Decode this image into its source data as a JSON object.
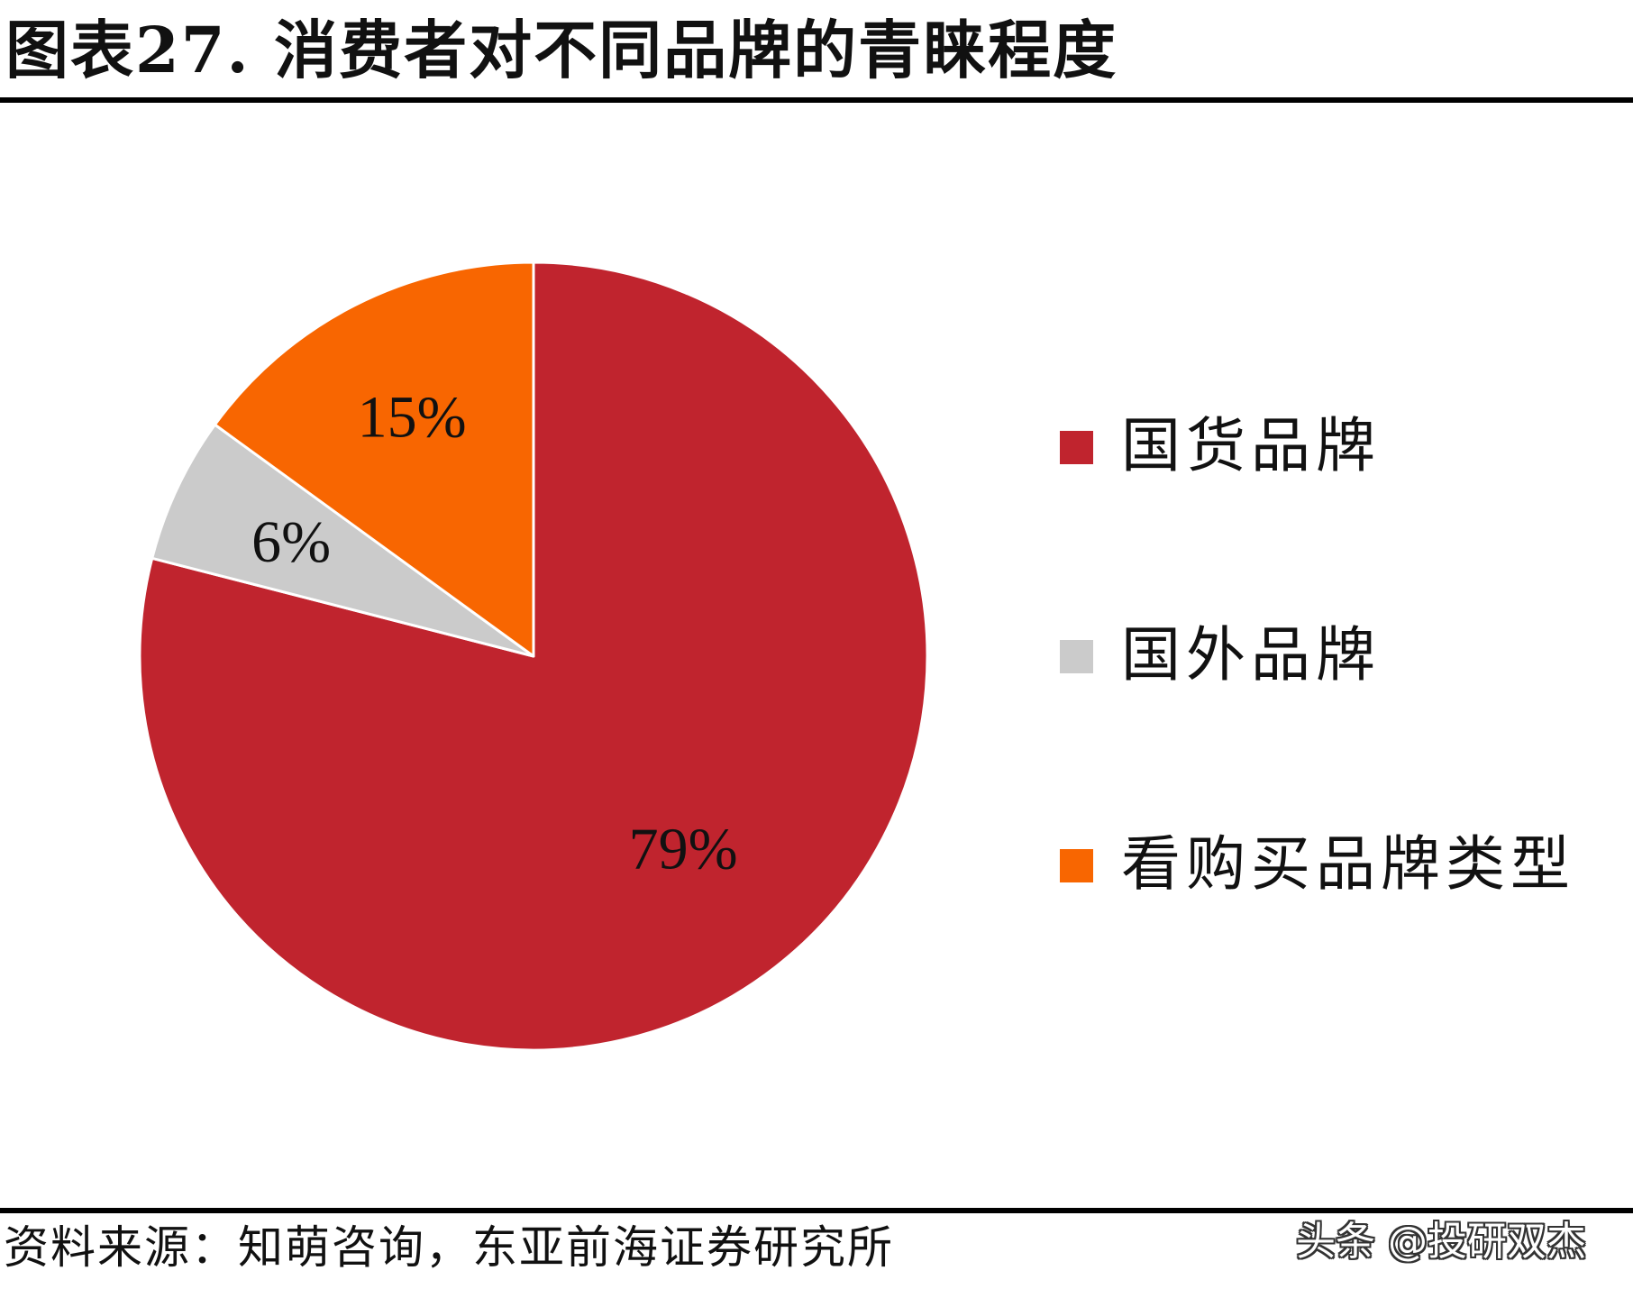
{
  "chart_data": {
    "type": "pie",
    "title": "图表27. 消费者对不同品牌的青睐程度",
    "categories": [
      "国货品牌",
      "国外品牌",
      "看购买品牌类型"
    ],
    "values": [
      79,
      6,
      15
    ],
    "labels": [
      "79%",
      "6%",
      "15%"
    ],
    "colors": [
      "#C0242E",
      "#CBCBCB",
      "#F86601"
    ],
    "legend_position": "right",
    "start_angle_deg": 90,
    "direction": "clockwise"
  },
  "footer": {
    "source": "资料来源：知萌咨询，东亚前海证券研究所",
    "watermark": "头条 @投研双杰"
  }
}
